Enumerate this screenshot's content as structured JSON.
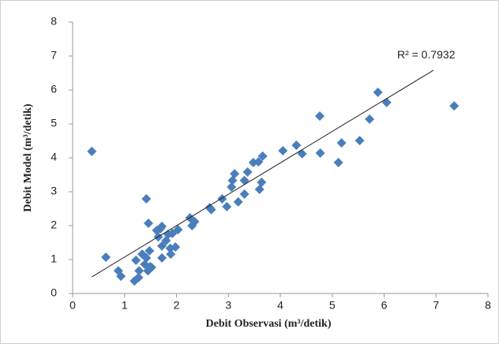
{
  "chart_data": {
    "type": "scatter",
    "x_label": "Debit Observasi  (m³/detik)",
    "y_label": "Debit Model  (m³/detik)",
    "x": [
      0.37,
      0.64,
      0.88,
      0.93,
      1.22,
      1.19,
      1.27,
      1.28,
      1.34,
      1.39,
      1.42,
      1.42,
      1.45,
      1.49,
      1.48,
      1.46,
      1.52,
      1.62,
      1.65,
      1.69,
      1.72,
      1.72,
      1.72,
      1.8,
      1.84,
      1.88,
      1.89,
      1.92,
      1.98,
      2.03,
      2.26,
      2.3,
      2.35,
      2.64,
      2.67,
      2.88,
      2.97,
      3.06,
      3.08,
      3.12,
      3.19,
      3.31,
      3.31,
      3.37,
      3.48,
      3.58,
      3.6,
      3.64,
      3.66,
      4.05,
      4.31,
      4.42,
      4.76,
      4.77,
      5.12,
      5.18,
      5.53,
      5.72,
      5.88,
      6.05,
      7.35
    ],
    "series": [
      {
        "color": "#4a7ebb",
        "values": [
          4.19,
          1.07,
          0.67,
          0.51,
          0.98,
          0.37,
          0.47,
          0.67,
          1.16,
          0.86,
          2.79,
          1.05,
          0.67,
          0.79,
          1.26,
          2.07,
          0.77,
          1.86,
          1.67,
          1.91,
          1.98,
          1.4,
          1.05,
          1.56,
          1.74,
          1.33,
          1.16,
          1.77,
          1.37,
          1.88,
          2.23,
          2.0,
          2.12,
          2.53,
          2.47,
          2.79,
          2.56,
          3.14,
          3.33,
          3.53,
          2.7,
          2.93,
          3.33,
          3.58,
          3.86,
          3.88,
          3.07,
          3.28,
          4.05,
          4.21,
          4.37,
          4.12,
          5.23,
          4.14,
          3.86,
          4.44,
          4.51,
          5.14,
          5.93,
          5.63,
          5.53
        ]
      }
    ],
    "trendline": {
      "x": [
        0.37,
        6.95
      ],
      "y": [
        0.49,
        6.58
      ],
      "label": "R² = 0.7932"
    },
    "xlim": [
      0,
      8
    ],
    "ylim": [
      0,
      8
    ],
    "xticks": [
      0,
      1,
      2,
      3,
      4,
      5,
      6,
      7,
      8
    ],
    "yticks": [
      0,
      1,
      2,
      3,
      4,
      5,
      6,
      7,
      8
    ]
  }
}
